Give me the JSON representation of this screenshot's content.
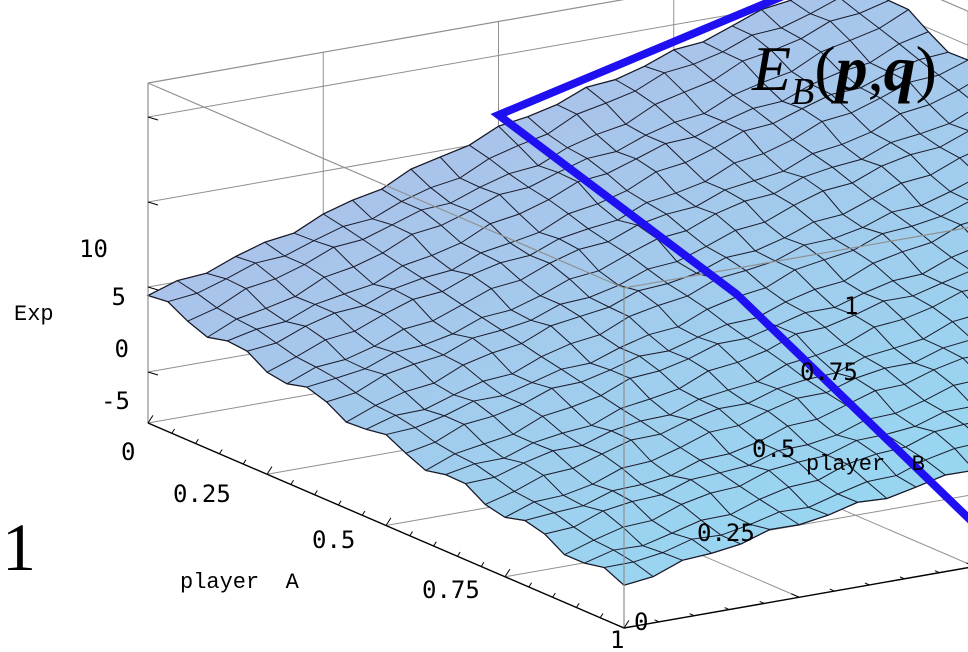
{
  "chart_data": {
    "type": "surface3d",
    "title": {
      "E": "E",
      "sub": "B",
      "open": "(",
      "p": "p",
      "comma": ",",
      "q": "q",
      "close": ")"
    },
    "zlabel": "Exp",
    "xlabel": "player  A",
    "ylabel": "player  B",
    "x_ticks": [
      "0",
      "0.25",
      "0.5",
      "0.75",
      "1"
    ],
    "y_ticks": [
      "0",
      "0.25",
      "0.5",
      "0.75",
      "1"
    ],
    "z_ticks": [
      "-5",
      "0",
      "5",
      "10"
    ],
    "x_range": [
      0,
      1
    ],
    "y_range": [
      0,
      1
    ],
    "z_range": [
      -8,
      12
    ],
    "corner_values": {
      "p0_q0": -0.5,
      "p1_q0": -5.5,
      "p0_q1": 11.5,
      "p1_q1": 1.5
    },
    "highlight_path": [
      [
        0,
        1,
        11.5
      ],
      [
        0,
        0.5,
        6.5
      ],
      [
        0.5,
        0.5,
        2
      ],
      [
        1,
        0.5,
        -5.5
      ]
    ],
    "mesh_divisions": 24,
    "colors": {
      "surface_top": "#b4b8e6",
      "surface_bottom": "#8ee0f4",
      "mesh": "#1a1a2a",
      "path": "#1f10f2",
      "box": "#909090"
    }
  },
  "side_label": "1"
}
